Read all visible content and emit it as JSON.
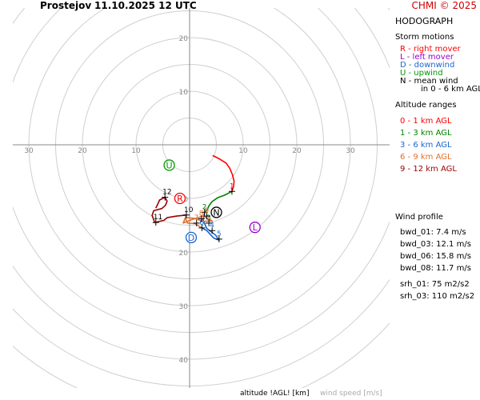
{
  "header": {
    "station": "Prostejov",
    "time": "11.10.2025 12 UTC",
    "credit": "CHMI © 2025"
  },
  "sidebar": {
    "title": "HODOGRAPH",
    "storm_motions_title": "Storm motions",
    "storm_motions": [
      {
        "text": "R - right mover",
        "color": "#ff0000"
      },
      {
        "text": "L - left mover",
        "color": "#9900cc"
      },
      {
        "text": "D - downwind",
        "color": "#1a66cc"
      },
      {
        "text": "U - upwind",
        "color": "#009900"
      },
      {
        "text": "N - mean wind",
        "color": "#000000"
      },
      {
        "text": "in 0 - 6 km AGL",
        "color": "#000000"
      }
    ],
    "altitude_title": "Altitude ranges",
    "altitude_ranges": [
      {
        "text": "0 - 1 km AGL",
        "color": "#ff0000"
      },
      {
        "text": "1 - 3 km AGL",
        "color": "#008000"
      },
      {
        "text": "3 - 6 km AGL",
        "color": "#1a66cc"
      },
      {
        "text": "6 - 9 km AGL",
        "color": "#e07030"
      },
      {
        "text": "9 - 12 km AGL",
        "color": "#990000"
      }
    ],
    "wind_profile_title": "Wind profile",
    "wind_profile": [
      "bwd_01: 7.4 m/s",
      "bwd_03: 12.1 m/s",
      "bwd_06: 15.8 m/s",
      "bwd_08: 11.7 m/s",
      "srh_01: 75 m2/s2",
      "srh_03: 110 m2/s2"
    ]
  },
  "footer": {
    "xlabel": "altitude !AGL! [km]",
    "xunits": "wind speed [m/s]"
  },
  "chart_data": {
    "type": "line",
    "plot_kind": "hodograph",
    "range": [
      -34,
      40
    ],
    "axis_x_ticks": [
      -30,
      -20,
      -10,
      10,
      20,
      30
    ],
    "axis_y_ticks": [
      20,
      10,
      -10,
      -20,
      -30,
      -40
    ],
    "axis_x_tick_labels": [
      "30",
      "20",
      "10",
      "10",
      "20",
      "30"
    ],
    "axis_y_tick_labels": [
      "20",
      "10",
      "10",
      "20",
      "30",
      "40"
    ],
    "ring_speeds": [
      5,
      10,
      15,
      20,
      25,
      30,
      35,
      40,
      45,
      50
    ],
    "grid": true,
    "segments": [
      {
        "range": "0-1 km",
        "color": "#ff0000",
        "points": [
          [
            4.3,
            -2.0
          ],
          [
            5.5,
            -2.6
          ],
          [
            6.8,
            -3.4
          ],
          [
            7.5,
            -4.4
          ],
          [
            8.0,
            -5.6
          ],
          [
            8.3,
            -6.8
          ],
          [
            8.2,
            -7.8
          ],
          [
            7.9,
            -8.7
          ]
        ]
      },
      {
        "range": "1-3 km",
        "color": "#008000",
        "points": [
          [
            7.9,
            -8.7
          ],
          [
            6.5,
            -9.4
          ],
          [
            5.2,
            -9.9
          ],
          [
            4.2,
            -10.6
          ],
          [
            3.6,
            -11.4
          ],
          [
            3.3,
            -12.1
          ],
          [
            2.8,
            -12.6
          ]
        ]
      },
      {
        "range": "3-6 km",
        "color": "#1a66cc",
        "points": [
          [
            2.8,
            -12.6
          ],
          [
            2.5,
            -14.0
          ],
          [
            3.2,
            -15.6
          ],
          [
            4.8,
            -16.8
          ],
          [
            5.5,
            -17.8
          ],
          [
            4.5,
            -17.4
          ],
          [
            3.2,
            -16.0
          ],
          [
            2.3,
            -15.5
          ]
        ]
      },
      {
        "range": "6-9 km",
        "color": "#e07030",
        "points": [
          [
            2.3,
            -15.5
          ],
          [
            1.0,
            -14.7
          ],
          [
            -0.4,
            -14.6
          ],
          [
            -0.8,
            -13.6
          ],
          [
            0.8,
            -13.7
          ],
          [
            2.5,
            -14.3
          ],
          [
            4.2,
            -14.2
          ],
          [
            2.5,
            -13.3
          ],
          [
            0.6,
            -13.9
          ],
          [
            -1.2,
            -14.6
          ],
          [
            -0.6,
            -13.1
          ]
        ]
      },
      {
        "range": "9-12 km",
        "color": "#990000",
        "points": [
          [
            -0.6,
            -13.1
          ],
          [
            -2.4,
            -13.3
          ],
          [
            -4.2,
            -13.6
          ],
          [
            -4.8,
            -14.1
          ],
          [
            -6.5,
            -14.5
          ],
          [
            -7.0,
            -13.2
          ],
          [
            -6.7,
            -12.3
          ],
          [
            -5.2,
            -11.9
          ],
          [
            -4.5,
            -11.3
          ],
          [
            -4.2,
            -10.5
          ],
          [
            -4.6,
            -9.8
          ],
          [
            -5.6,
            -10.3
          ],
          [
            -6.0,
            -11.2
          ],
          [
            -6.3,
            -11.8
          ]
        ]
      }
    ],
    "altitude_labels": [
      {
        "text": "1",
        "x": 7.9,
        "y": -8.7,
        "color": "#ff0000"
      },
      {
        "text": "2",
        "x": 2.8,
        "y": -12.6,
        "color": "#008000"
      },
      {
        "text": "3",
        "x": 3.6,
        "y": -14.6,
        "color": "#008000"
      },
      {
        "text": "4",
        "x": 4.2,
        "y": -16.0,
        "color": "#1a66cc"
      },
      {
        "text": "5",
        "x": 5.5,
        "y": -17.6,
        "color": "#1a66cc"
      },
      {
        "text": "6",
        "x": 2.3,
        "y": -15.5,
        "color": "#1a66cc"
      },
      {
        "text": "7",
        "x": 1.3,
        "y": -14.6,
        "color": "#e07030"
      },
      {
        "text": "8",
        "x": 2.2,
        "y": -13.8,
        "color": "#e07030"
      },
      {
        "text": "9",
        "x": 3.2,
        "y": -13.3,
        "color": "#e07030"
      },
      {
        "text": "10",
        "x": -0.6,
        "y": -13.1,
        "color": "#000000"
      },
      {
        "text": "11",
        "x": -6.3,
        "y": -14.5,
        "color": "#000000"
      },
      {
        "text": "12",
        "x": -4.6,
        "y": -9.8,
        "color": "#000000"
      }
    ],
    "storm_motions": [
      {
        "label": "R",
        "x": -1.8,
        "y": -10.0,
        "color": "#ff0000"
      },
      {
        "label": "L",
        "x": 12.2,
        "y": -15.4,
        "color": "#9900cc"
      },
      {
        "label": "D",
        "x": 0.3,
        "y": -17.3,
        "color": "#1a66cc"
      },
      {
        "label": "U",
        "x": -3.8,
        "y": -3.8,
        "color": "#009900"
      },
      {
        "label": "N",
        "x": 5.0,
        "y": -12.6,
        "color": "#000000"
      }
    ]
  }
}
